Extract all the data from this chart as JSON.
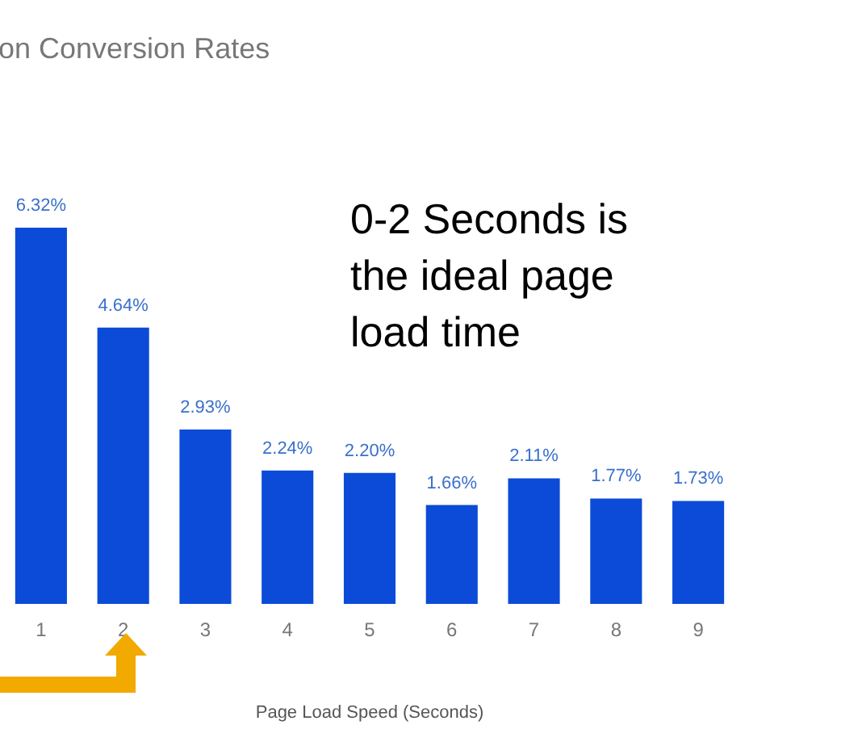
{
  "chart_data": {
    "type": "bar",
    "title": "on Conversion Rates",
    "xlabel": "Page Load Speed (Seconds)",
    "categories": [
      "1",
      "2",
      "3",
      "4",
      "5",
      "6",
      "7",
      "8",
      "9"
    ],
    "values": [
      6.32,
      4.64,
      2.93,
      2.24,
      2.2,
      1.66,
      2.11,
      1.77,
      1.73
    ],
    "value_labels": [
      "6.32%",
      "4.64%",
      "2.93%",
      "2.24%",
      "2.20%",
      "1.66%",
      "2.11%",
      "1.77%",
      "1.73%"
    ],
    "color": "#0b4bd8",
    "annotations": [
      "0-2 Seconds is the ideal page load time"
    ]
  }
}
